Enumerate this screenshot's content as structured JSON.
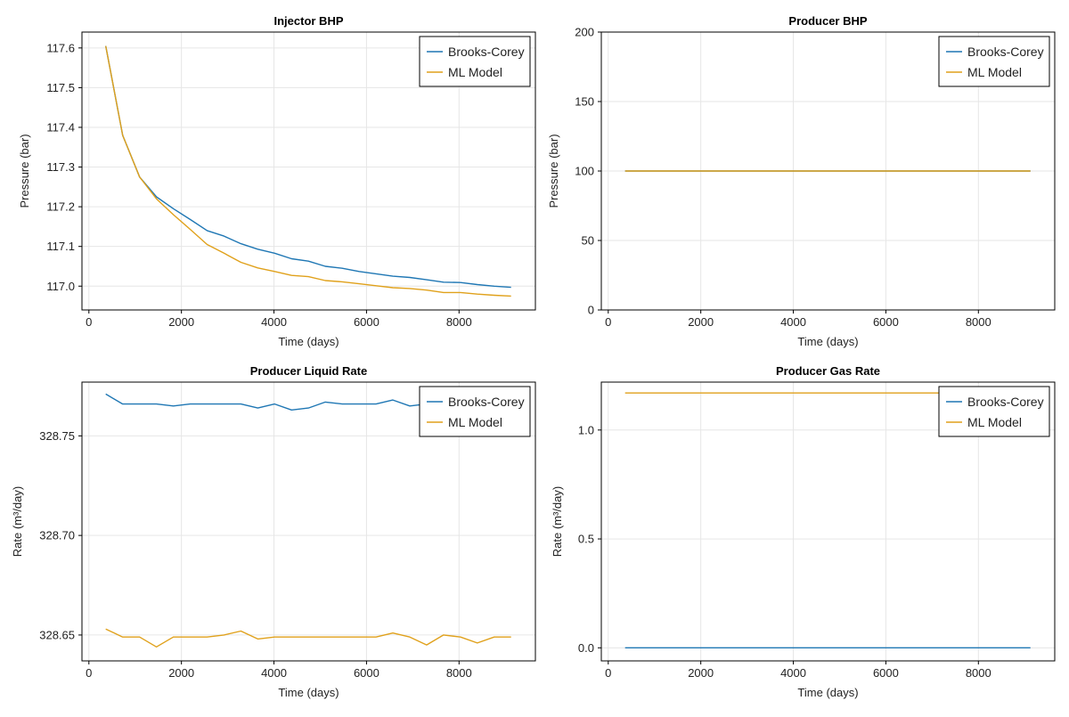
{
  "figure": {
    "colors": {
      "brooks_corey": "#1f77b4",
      "ml_model": "#e0a11b",
      "grid": "#e6e6e6",
      "frame": "#000000",
      "text": "#222222"
    }
  },
  "chart_data": [
    {
      "type": "line",
      "title": "Injector BHP",
      "xlabel": "Time (days)",
      "ylabel": "Pressure (bar)",
      "xlim": [
        -150,
        9650
      ],
      "ylim": [
        116.94,
        117.64
      ],
      "xticks": [
        0,
        2000,
        4000,
        6000,
        8000
      ],
      "xtick_labels": [
        "0",
        "2000",
        "4000",
        "6000",
        "8000"
      ],
      "yticks": [
        117.0,
        117.1,
        117.2,
        117.3,
        117.4,
        117.5,
        117.6
      ],
      "ytick_labels": [
        "117.0",
        "117.1",
        "117.2",
        "117.3",
        "117.4",
        "117.5",
        "117.6"
      ],
      "grid": true,
      "legend": "top-right",
      "x": [
        365,
        730,
        1095,
        1460,
        1825,
        2190,
        2555,
        2920,
        3285,
        3650,
        4015,
        4380,
        4745,
        5110,
        5475,
        5840,
        6205,
        6570,
        6935,
        7300,
        7665,
        8030,
        8395,
        8760,
        9125
      ],
      "series": [
        {
          "name": "Brooks-Corey",
          "values": [
            117.605,
            117.38,
            117.275,
            117.225,
            117.195,
            117.168,
            117.14,
            117.126,
            117.107,
            117.093,
            117.083,
            117.069,
            117.063,
            117.05,
            117.045,
            117.037,
            117.031,
            117.025,
            117.022,
            117.016,
            117.01,
            117.009,
            117.004,
            117.0,
            116.997
          ]
        },
        {
          "name": "ML Model",
          "values": [
            117.605,
            117.38,
            117.275,
            117.22,
            117.18,
            117.143,
            117.105,
            117.083,
            117.06,
            117.046,
            117.037,
            117.027,
            117.024,
            117.014,
            117.011,
            117.006,
            117.001,
            116.996,
            116.994,
            116.99,
            116.984,
            116.984,
            116.98,
            116.977,
            116.975
          ]
        }
      ]
    },
    {
      "type": "line",
      "title": "Producer BHP",
      "xlabel": "Time (days)",
      "ylabel": "Pressure (bar)",
      "xlim": [
        -150,
        9650
      ],
      "ylim": [
        0,
        200
      ],
      "xticks": [
        0,
        2000,
        4000,
        6000,
        8000
      ],
      "xtick_labels": [
        "0",
        "2000",
        "4000",
        "6000",
        "8000"
      ],
      "yticks": [
        0,
        50,
        100,
        150,
        200
      ],
      "ytick_labels": [
        "0",
        "50",
        "100",
        "150",
        "200"
      ],
      "grid": true,
      "legend": "top-right",
      "x": [
        365,
        9125
      ],
      "series": [
        {
          "name": "Brooks-Corey",
          "values": [
            100,
            100
          ]
        },
        {
          "name": "ML Model",
          "values": [
            100,
            100
          ]
        }
      ]
    },
    {
      "type": "line",
      "title": "Producer Liquid Rate",
      "xlabel": "Time (days)",
      "ylabel": "Rate (m³/day)",
      "xlim": [
        -150,
        9650
      ],
      "ylim": [
        328.637,
        328.777
      ],
      "xticks": [
        0,
        2000,
        4000,
        6000,
        8000
      ],
      "xtick_labels": [
        "0",
        "2000",
        "4000",
        "6000",
        "8000"
      ],
      "yticks": [
        328.65,
        328.7,
        328.75
      ],
      "ytick_labels": [
        "328.65",
        "328.70",
        "328.75"
      ],
      "grid": true,
      "legend": "top-right",
      "x": [
        365,
        730,
        1095,
        1460,
        1825,
        2190,
        2555,
        2920,
        3285,
        3650,
        4015,
        4380,
        4745,
        5110,
        5475,
        5840,
        6205,
        6570,
        6935,
        7300,
        7665,
        8030,
        8395,
        8760,
        9125
      ],
      "series": [
        {
          "name": "Brooks-Corey",
          "values": [
            328.771,
            328.766,
            328.766,
            328.766,
            328.765,
            328.766,
            328.766,
            328.766,
            328.766,
            328.764,
            328.766,
            328.763,
            328.764,
            328.767,
            328.766,
            328.766,
            328.766,
            328.768,
            328.765,
            328.766,
            328.766,
            328.766,
            328.766,
            328.766,
            328.766
          ]
        },
        {
          "name": "ML Model",
          "values": [
            328.653,
            328.649,
            328.649,
            328.644,
            328.649,
            328.649,
            328.649,
            328.65,
            328.652,
            328.648,
            328.649,
            328.649,
            328.649,
            328.649,
            328.649,
            328.649,
            328.649,
            328.651,
            328.649,
            328.645,
            328.65,
            328.649,
            328.646,
            328.649,
            328.649
          ]
        }
      ]
    },
    {
      "type": "line",
      "title": "Producer Gas Rate",
      "xlabel": "Time (days)",
      "ylabel": "Rate (m³/day)",
      "xlim": [
        -150,
        9650
      ],
      "ylim": [
        -0.06,
        1.22
      ],
      "xticks": [
        0,
        2000,
        4000,
        6000,
        8000
      ],
      "xtick_labels": [
        "0",
        "2000",
        "4000",
        "6000",
        "8000"
      ],
      "yticks": [
        0.0,
        0.5,
        1.0
      ],
      "ytick_labels": [
        "0.0",
        "0.5",
        "1.0"
      ],
      "grid": true,
      "legend": "top-right",
      "x": [
        365,
        9125
      ],
      "series": [
        {
          "name": "Brooks-Corey",
          "values": [
            0.0,
            0.0
          ]
        },
        {
          "name": "ML Model",
          "values": [
            1.17,
            1.17
          ]
        }
      ]
    }
  ]
}
